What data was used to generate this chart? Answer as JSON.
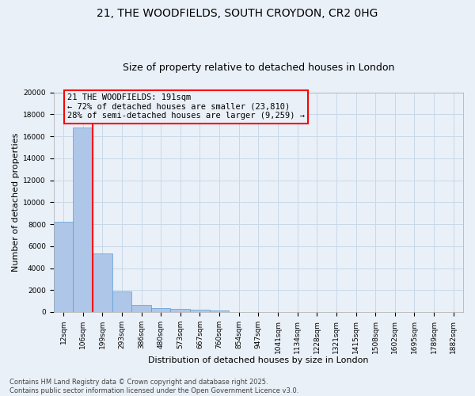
{
  "title_line1": "21, THE WOODFIELDS, SOUTH CROYDON, CR2 0HG",
  "title_line2": "Size of property relative to detached houses in London",
  "xlabel": "Distribution of detached houses by size in London",
  "ylabel": "Number of detached properties",
  "categories": [
    "12sqm",
    "106sqm",
    "199sqm",
    "293sqm",
    "386sqm",
    "480sqm",
    "573sqm",
    "667sqm",
    "760sqm",
    "854sqm",
    "947sqm",
    "1041sqm",
    "1134sqm",
    "1228sqm",
    "1321sqm",
    "1415sqm",
    "1508sqm",
    "1602sqm",
    "1695sqm",
    "1789sqm",
    "1882sqm"
  ],
  "values": [
    8200,
    16800,
    5350,
    1850,
    680,
    360,
    280,
    190,
    130,
    0,
    0,
    0,
    0,
    0,
    0,
    0,
    0,
    0,
    0,
    0,
    0
  ],
  "bar_color": "#aec6e8",
  "bar_edge_color": "#5a9fd4",
  "grid_color": "#c8d8e8",
  "background_color": "#eaf0f8",
  "vline_color": "red",
  "vline_x": 1.5,
  "annotation_text": "21 THE WOODFIELDS: 191sqm\n← 72% of detached houses are smaller (23,810)\n28% of semi-detached houses are larger (9,259) →",
  "annotation_box_color": "red",
  "ylim": [
    0,
    20000
  ],
  "yticks": [
    0,
    2000,
    4000,
    6000,
    8000,
    10000,
    12000,
    14000,
    16000,
    18000,
    20000
  ],
  "footer_line1": "Contains HM Land Registry data © Crown copyright and database right 2025.",
  "footer_line2": "Contains public sector information licensed under the Open Government Licence v3.0.",
  "title_fontsize": 10,
  "subtitle_fontsize": 9,
  "axis_label_fontsize": 8,
  "tick_fontsize": 6.5,
  "annotation_fontsize": 7.5,
  "footer_fontsize": 6
}
